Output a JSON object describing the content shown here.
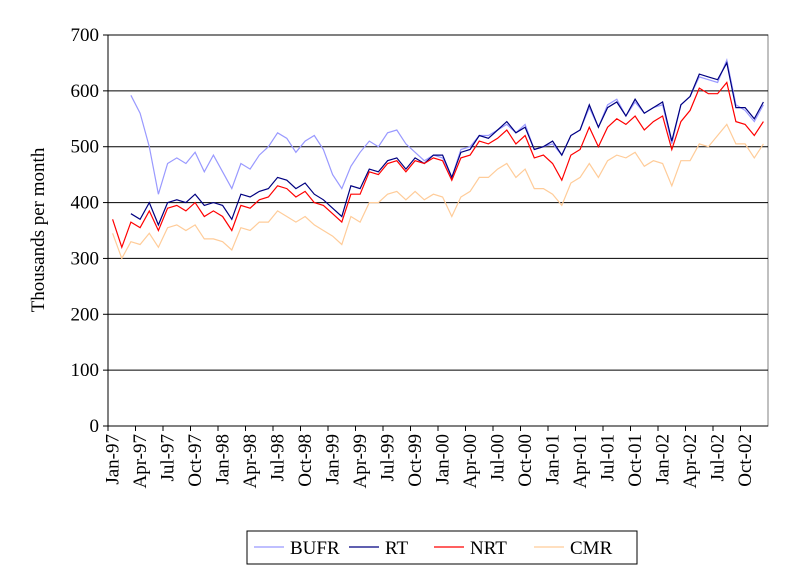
{
  "chart_data": {
    "type": "line",
    "y_label": "Thousands per month",
    "categories": [
      "Jan-97",
      null,
      null,
      "Apr-97",
      null,
      null,
      "Jul-97",
      null,
      null,
      "Oct-97",
      null,
      null,
      "Jan-98",
      null,
      null,
      "Apr-98",
      null,
      null,
      "Jul-98",
      null,
      null,
      "Oct-98",
      null,
      null,
      "Jan-99",
      null,
      null,
      "Apr-99",
      null,
      null,
      "Jul-99",
      null,
      null,
      "Oct-99",
      null,
      null,
      "Jan-00",
      null,
      null,
      "Apr-00",
      null,
      null,
      "Jul-00",
      null,
      null,
      "Oct-00",
      null,
      null,
      "Jan-01",
      null,
      null,
      "Apr-01",
      null,
      null,
      "Jul-01",
      null,
      null,
      "Oct-01",
      null,
      null,
      "Jan-02",
      null,
      null,
      "Apr-02",
      null,
      null,
      "Jul-02",
      null,
      null,
      "Oct-02",
      null,
      null
    ],
    "series": [
      {
        "name": "BUFR",
        "color": "#9999ff",
        "values": [
          null,
          null,
          592,
          560,
          500,
          415,
          470,
          480,
          470,
          490,
          455,
          485,
          455,
          425,
          470,
          460,
          485,
          500,
          525,
          515,
          490,
          510,
          520,
          495,
          450,
          425,
          465,
          490,
          510,
          500,
          525,
          530,
          505,
          490,
          475,
          485,
          480,
          445,
          495,
          500,
          520,
          520,
          530,
          540,
          525,
          540,
          495,
          500,
          505,
          485,
          520,
          530,
          570,
          535,
          575,
          585,
          555,
          580,
          560,
          570,
          575,
          505,
          575,
          590,
          625,
          620,
          615,
          655,
          575,
          565,
          545,
          575
        ]
      },
      {
        "name": "RT",
        "color": "#000080",
        "values": [
          null,
          null,
          380,
          370,
          400,
          360,
          400,
          405,
          400,
          415,
          395,
          400,
          395,
          370,
          415,
          410,
          420,
          425,
          445,
          440,
          425,
          435,
          415,
          405,
          390,
          375,
          430,
          425,
          460,
          455,
          475,
          480,
          460,
          480,
          470,
          485,
          485,
          445,
          490,
          495,
          520,
          515,
          530,
          545,
          525,
          535,
          495,
          500,
          510,
          485,
          520,
          530,
          575,
          535,
          570,
          580,
          555,
          585,
          560,
          570,
          580,
          510,
          575,
          590,
          630,
          625,
          620,
          650,
          570,
          570,
          550,
          580
        ]
      },
      {
        "name": "NRT",
        "color": "#ff0000",
        "values": [
          370,
          320,
          365,
          355,
          385,
          350,
          390,
          395,
          385,
          400,
          375,
          385,
          375,
          350,
          395,
          390,
          405,
          410,
          430,
          425,
          410,
          420,
          400,
          395,
          380,
          365,
          415,
          415,
          455,
          450,
          470,
          475,
          455,
          475,
          470,
          480,
          475,
          440,
          480,
          485,
          510,
          505,
          515,
          530,
          505,
          520,
          480,
          485,
          470,
          440,
          485,
          495,
          535,
          500,
          535,
          550,
          540,
          555,
          530,
          545,
          555,
          495,
          545,
          565,
          605,
          595,
          595,
          615,
          545,
          540,
          520,
          545
        ]
      },
      {
        "name": "CMR",
        "color": "#ffcc99",
        "values": [
          345,
          300,
          330,
          325,
          345,
          320,
          355,
          360,
          350,
          360,
          335,
          335,
          330,
          315,
          355,
          350,
          365,
          365,
          385,
          375,
          365,
          375,
          360,
          350,
          340,
          325,
          375,
          365,
          400,
          400,
          415,
          420,
          405,
          420,
          405,
          415,
          410,
          375,
          410,
          420,
          445,
          445,
          460,
          470,
          445,
          460,
          425,
          425,
          415,
          395,
          435,
          445,
          470,
          445,
          475,
          485,
          480,
          490,
          465,
          475,
          470,
          430,
          475,
          475,
          505,
          500,
          520,
          540,
          505,
          505,
          480,
          505
        ]
      }
    ],
    "ylim": [
      0,
      700
    ],
    "yticks": [
      0,
      100,
      200,
      300,
      400,
      500,
      600,
      700
    ],
    "grid": true,
    "legend": "bottom"
  }
}
